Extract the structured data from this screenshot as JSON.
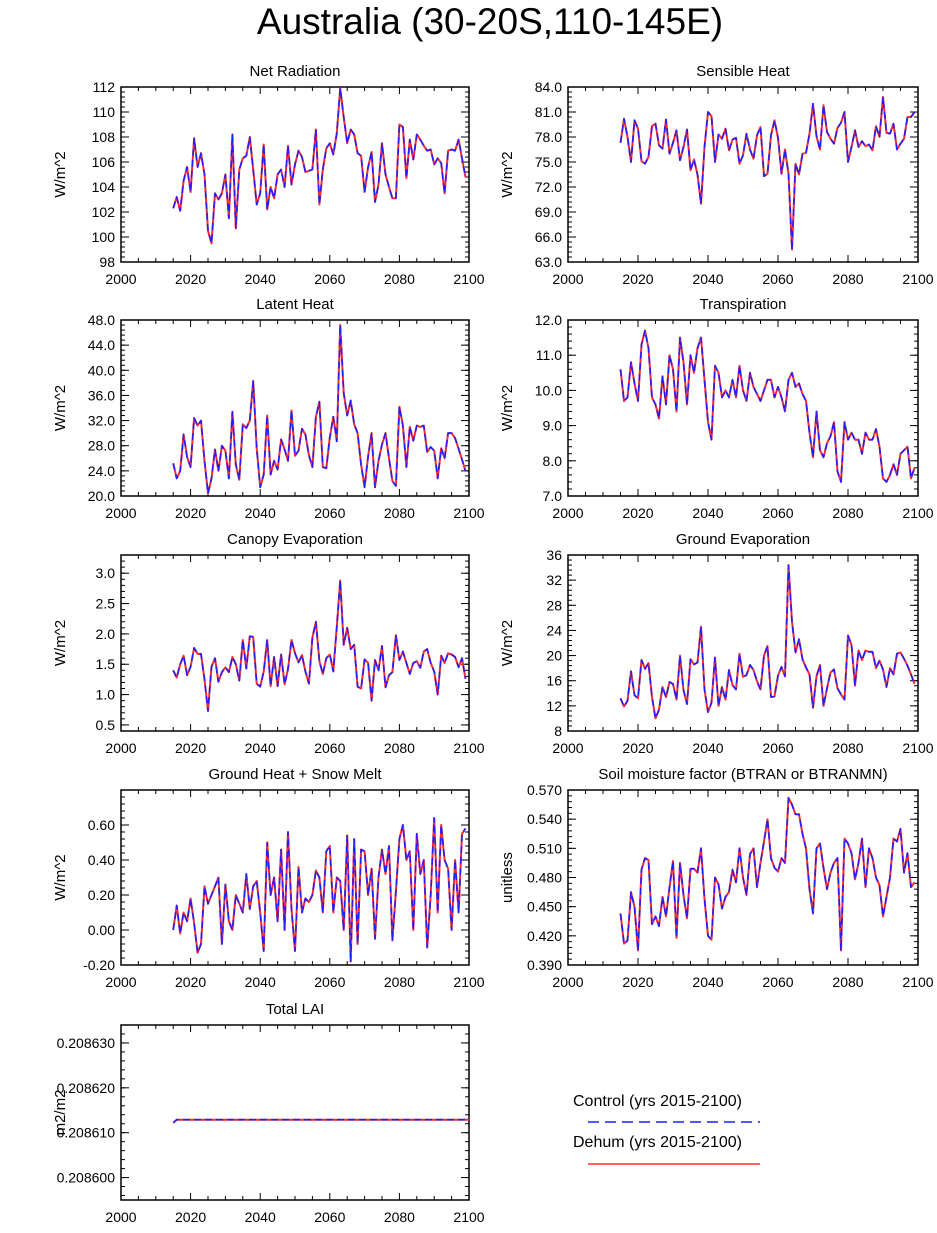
{
  "figure_title": "Australia (30-20S,110-145E)",
  "legend": [
    {
      "label": "Control (yrs 2015-2100)",
      "color": "#1f1fff",
      "style": "dashed"
    },
    {
      "label": "Dehum (yrs 2015-2100)",
      "color": "#ff2a2a",
      "style": "solid"
    }
  ],
  "chart_data": [
    {
      "type": "line",
      "title": "Net Radiation",
      "ylabel": "W/m^2",
      "xlim": [
        2000,
        2100
      ],
      "ylim": [
        98,
        112
      ],
      "yticks": [
        "98",
        "100",
        "102",
        "104",
        "106",
        "108",
        "110",
        "112"
      ],
      "xticks": [
        "2000",
        "2020",
        "2040",
        "2060",
        "2080",
        "2100"
      ],
      "x_start": 2015,
      "values": [
        102.3,
        103.2,
        102.1,
        104.5,
        105.6,
        103.6,
        107.9,
        105.6,
        106.7,
        105.0,
        100.5,
        99.5,
        103.5,
        103.0,
        103.5,
        105.0,
        101.5,
        108.2,
        100.7,
        105.4,
        106.3,
        106.5,
        108.0,
        105.4,
        102.6,
        103.5,
        107.4,
        102.2,
        104.0,
        103.1,
        105.0,
        105.4,
        104.0,
        107.3,
        104.2,
        105.8,
        106.9,
        106.4,
        105.2,
        105.3,
        105.4,
        108.6,
        102.6,
        105.4,
        107.1,
        107.5,
        106.6,
        108.3,
        111.9,
        109.6,
        107.5,
        108.6,
        108.2,
        106.7,
        106.5,
        103.6,
        105.6,
        106.8,
        102.8,
        104.2,
        107.5,
        105.0,
        104.0,
        103.1,
        103.1,
        109.0,
        108.8,
        104.7,
        107.8,
        106.2,
        108.2,
        107.8,
        107.3,
        106.9,
        107.0,
        105.8,
        106.3,
        105.9,
        103.5,
        106.9,
        107.0,
        106.9,
        107.8,
        106.3,
        104.8
      ]
    },
    {
      "type": "line",
      "title": "Sensible Heat",
      "ylabel": "W/m^2",
      "xlim": [
        2000,
        2100
      ],
      "ylim": [
        63,
        84
      ],
      "yticks": [
        "63.0",
        "66.0",
        "69.0",
        "72.0",
        "75.0",
        "78.0",
        "81.0",
        "84.0"
      ],
      "xticks": [
        "2000",
        "2020",
        "2040",
        "2060",
        "2080",
        "2100"
      ],
      "x_start": 2015,
      "values": [
        77.3,
        80.2,
        78.0,
        75.0,
        80.0,
        79.0,
        75.1,
        74.8,
        75.6,
        79.3,
        79.6,
        77.0,
        76.6,
        80.1,
        76.0,
        77.3,
        78.8,
        75.2,
        76.8,
        78.9,
        74.0,
        75.3,
        73.5,
        70.0,
        76.8,
        81.0,
        80.5,
        75.0,
        78.3,
        77.8,
        79.0,
        76.4,
        77.7,
        77.9,
        74.8,
        75.8,
        78.4,
        76.5,
        75.4,
        78.2,
        79.2,
        73.3,
        73.6,
        78.2,
        80.0,
        77.9,
        73.6,
        76.5,
        73.6,
        64.5,
        74.8,
        73.5,
        76.0,
        76.1,
        78.4,
        82.0,
        78.1,
        76.5,
        81.8,
        78.6,
        77.8,
        77.2,
        79.1,
        79.7,
        81.0,
        75.0,
        76.8,
        78.8,
        76.8,
        77.5,
        76.9,
        77.1,
        76.4,
        79.3,
        78.0,
        82.8,
        78.5,
        78.4,
        79.6,
        76.5,
        77.2,
        77.8,
        80.4,
        80.4,
        81.0
      ]
    },
    {
      "type": "line",
      "title": "Latent Heat",
      "ylabel": "W/m^2",
      "xlim": [
        2000,
        2100
      ],
      "ylim": [
        20,
        48
      ],
      "yticks": [
        "20.0",
        "24.0",
        "28.0",
        "32.0",
        "36.0",
        "40.0",
        "44.0",
        "48.0"
      ],
      "xticks": [
        "2000",
        "2020",
        "2040",
        "2060",
        "2080",
        "2100"
      ],
      "x_start": 2015,
      "values": [
        25.2,
        22.8,
        24.0,
        29.8,
        26.2,
        24.6,
        32.4,
        31.2,
        32.0,
        25.6,
        20.4,
        22.8,
        27.4,
        24.0,
        28.0,
        27.2,
        22.8,
        33.4,
        25.0,
        22.6,
        31.4,
        30.8,
        32.0,
        38.3,
        27.6,
        21.4,
        23.4,
        32.8,
        23.4,
        25.6,
        24.2,
        29.0,
        27.4,
        25.6,
        33.6,
        26.4,
        27.2,
        30.7,
        29.8,
        26.5,
        24.6,
        32.6,
        35.0,
        24.6,
        24.4,
        29.3,
        32.6,
        28.7,
        47.2,
        36.4,
        32.8,
        35.2,
        31.4,
        30.0,
        25.0,
        21.4,
        26.3,
        30.0,
        21.4,
        25.6,
        28.2,
        30.0,
        26.0,
        22.4,
        21.6,
        34.2,
        31.2,
        24.6,
        31.0,
        28.8,
        31.2,
        31.0,
        31.2,
        27.0,
        27.8,
        27.2,
        22.8,
        27.6,
        26.0,
        30.0,
        30.0,
        29.2,
        27.5,
        25.8,
        24.0
      ]
    },
    {
      "type": "line",
      "title": "Transpiration",
      "ylabel": "W/m^2",
      "xlim": [
        2000,
        2100
      ],
      "ylim": [
        7,
        12
      ],
      "yticks": [
        "7.0",
        "8.0",
        "9.0",
        "10.0",
        "11.0",
        "12.0"
      ],
      "xticks": [
        "2000",
        "2020",
        "2040",
        "2060",
        "2080",
        "2100"
      ],
      "x_start": 2015,
      "values": [
        10.6,
        9.7,
        9.8,
        10.8,
        10.2,
        9.7,
        11.3,
        11.7,
        11.2,
        9.8,
        9.6,
        9.2,
        10.4,
        9.6,
        11.0,
        10.6,
        9.4,
        11.5,
        10.8,
        9.6,
        11.0,
        10.5,
        11.2,
        11.5,
        10.3,
        9.1,
        8.6,
        10.7,
        10.5,
        9.8,
        10.0,
        9.8,
        10.3,
        9.8,
        10.7,
        10.0,
        9.7,
        10.5,
        10.1,
        9.9,
        9.7,
        10.0,
        10.3,
        10.3,
        9.8,
        10.1,
        9.8,
        9.4,
        10.3,
        10.5,
        10.1,
        10.2,
        9.9,
        9.7,
        8.8,
        8.1,
        9.4,
        8.3,
        8.1,
        8.5,
        8.7,
        9.1,
        7.7,
        7.4,
        9.1,
        8.6,
        8.8,
        8.6,
        8.6,
        8.2,
        8.8,
        8.6,
        8.6,
        8.9,
        8.4,
        7.5,
        7.4,
        7.6,
        7.9,
        7.6,
        8.2,
        8.3,
        8.4,
        7.5,
        7.8
      ]
    },
    {
      "type": "line",
      "title": "Canopy Evaporation",
      "ylabel": "W/m^2",
      "xlim": [
        2000,
        2100
      ],
      "ylim": [
        0.4,
        3.3
      ],
      "yticks": [
        "0.5",
        "1.0",
        "1.5",
        "2.0",
        "2.5",
        "3.0"
      ],
      "xticks": [
        "2000",
        "2020",
        "2040",
        "2060",
        "2080",
        "2100"
      ],
      "x_start": 2015,
      "values": [
        1.4,
        1.28,
        1.5,
        1.64,
        1.32,
        1.46,
        1.77,
        1.67,
        1.67,
        1.25,
        0.73,
        1.46,
        1.6,
        1.21,
        1.37,
        1.45,
        1.37,
        1.62,
        1.5,
        1.23,
        1.9,
        1.43,
        1.96,
        1.95,
        1.18,
        1.13,
        1.38,
        1.9,
        1.14,
        1.62,
        1.14,
        1.66,
        1.17,
        1.42,
        1.9,
        1.68,
        1.53,
        1.65,
        1.38,
        1.18,
        1.94,
        2.2,
        1.55,
        1.34,
        1.6,
        1.66,
        1.38,
        2.12,
        2.88,
        1.82,
        2.1,
        1.75,
        1.82,
        1.13,
        1.1,
        1.58,
        1.52,
        0.9,
        1.57,
        1.4,
        1.8,
        1.12,
        1.32,
        1.37,
        1.98,
        1.57,
        1.71,
        1.52,
        1.34,
        1.52,
        1.55,
        1.44,
        1.71,
        1.75,
        1.52,
        1.38,
        1.0,
        1.64,
        1.52,
        1.68,
        1.66,
        1.62,
        1.45,
        1.6,
        1.26
      ]
    },
    {
      "type": "line",
      "title": "Ground Evaporation",
      "ylabel": "W/m^2",
      "xlim": [
        2000,
        2100
      ],
      "ylim": [
        8,
        36
      ],
      "yticks": [
        "8",
        "12",
        "16",
        "20",
        "24",
        "28",
        "32",
        "36"
      ],
      "xticks": [
        "2000",
        "2020",
        "2040",
        "2060",
        "2080",
        "2100"
      ],
      "x_start": 2015,
      "values": [
        13.2,
        11.9,
        12.8,
        17.5,
        13.7,
        13.2,
        19.3,
        17.9,
        18.8,
        13.4,
        10.0,
        11.4,
        15.0,
        13.4,
        15.8,
        15.5,
        13.0,
        20.0,
        14.5,
        12.3,
        19.4,
        18.6,
        18.9,
        24.6,
        14.6,
        11.0,
        12.5,
        19.7,
        12.0,
        15.0,
        13.0,
        17.7,
        15.3,
        14.6,
        20.3,
        16.6,
        16.9,
        18.5,
        17.7,
        15.9,
        14.6,
        20.0,
        21.5,
        13.4,
        13.5,
        16.8,
        18.2,
        16.7,
        34.4,
        25.4,
        20.5,
        22.6,
        19.4,
        18.1,
        17.0,
        11.7,
        16.7,
        18.5,
        12.0,
        14.8,
        17.3,
        17.8,
        14.8,
        13.8,
        13.0,
        23.2,
        21.7,
        15.2,
        20.8,
        19.3,
        20.8,
        20.6,
        20.6,
        18.0,
        19.2,
        17.8,
        15.0,
        18.0,
        17.0,
        20.3,
        20.5,
        19.5,
        18.4,
        17.0,
        15.5
      ]
    },
    {
      "type": "line",
      "title": "Ground Heat + Snow Melt",
      "ylabel": "W/m^2",
      "xlim": [
        2000,
        2100
      ],
      "ylim": [
        -0.2,
        0.8
      ],
      "yticks": [
        "-0.20",
        "0.00",
        "0.20",
        "0.40",
        "0.60"
      ],
      "xticks": [
        "2000",
        "2020",
        "2040",
        "2060",
        "2080",
        "2100"
      ],
      "x_start": 2015,
      "values": [
        0.0,
        0.14,
        -0.02,
        0.1,
        0.05,
        0.18,
        0.04,
        -0.13,
        -0.08,
        0.25,
        0.15,
        0.2,
        0.25,
        0.3,
        -0.08,
        0.26,
        0.05,
        0.0,
        0.2,
        0.15,
        0.1,
        0.32,
        0.12,
        0.25,
        0.28,
        0.1,
        -0.12,
        0.5,
        0.2,
        0.3,
        0.05,
        0.46,
        0.0,
        0.56,
        0.12,
        -0.12,
        0.36,
        0.1,
        0.18,
        0.16,
        0.2,
        0.34,
        0.3,
        0.1,
        0.45,
        0.48,
        0.1,
        0.3,
        0.28,
        0.0,
        0.54,
        -0.18,
        0.52,
        -0.08,
        0.46,
        0.45,
        0.2,
        0.35,
        -0.05,
        0.3,
        0.46,
        0.32,
        0.48,
        -0.06,
        0.22,
        0.52,
        0.6,
        0.4,
        0.45,
        0.0,
        0.55,
        0.32,
        0.4,
        -0.1,
        0.2,
        0.64,
        0.1,
        0.6,
        0.4,
        0.35,
        0.0,
        0.4,
        0.1,
        0.55,
        0.58
      ]
    },
    {
      "type": "line",
      "title": "Soil moisture factor (BTRAN or BTRANMN)",
      "ylabel": "unitless",
      "xlim": [
        2000,
        2100
      ],
      "ylim": [
        0.39,
        0.57
      ],
      "yticks": [
        "0.390",
        "0.420",
        "0.450",
        "0.480",
        "0.510",
        "0.540",
        "0.570"
      ],
      "xticks": [
        "2000",
        "2020",
        "2040",
        "2060",
        "2080",
        "2100"
      ],
      "x_start": 2015,
      "values": [
        0.443,
        0.412,
        0.415,
        0.465,
        0.45,
        0.405,
        0.488,
        0.5,
        0.498,
        0.432,
        0.44,
        0.43,
        0.46,
        0.44,
        0.47,
        0.497,
        0.418,
        0.495,
        0.462,
        0.438,
        0.489,
        0.489,
        0.485,
        0.51,
        0.458,
        0.42,
        0.416,
        0.48,
        0.473,
        0.448,
        0.46,
        0.465,
        0.488,
        0.475,
        0.51,
        0.48,
        0.462,
        0.504,
        0.51,
        0.47,
        0.495,
        0.517,
        0.54,
        0.5,
        0.49,
        0.486,
        0.5,
        0.495,
        0.562,
        0.555,
        0.545,
        0.545,
        0.525,
        0.51,
        0.468,
        0.443,
        0.51,
        0.515,
        0.49,
        0.468,
        0.485,
        0.495,
        0.5,
        0.405,
        0.52,
        0.515,
        0.505,
        0.478,
        0.495,
        0.52,
        0.47,
        0.51,
        0.5,
        0.48,
        0.472,
        0.44,
        0.46,
        0.48,
        0.52,
        0.517,
        0.53,
        0.485,
        0.505,
        0.47,
        0.475
      ]
    },
    {
      "type": "line",
      "title": "Total LAI",
      "ylabel": "m2/m2",
      "xlim": [
        2000,
        2100
      ],
      "ylim": [
        0.208595,
        0.208634
      ],
      "yticks": [
        "0.208600",
        "0.208610",
        "0.208620",
        "0.208630"
      ],
      "xticks": [
        "2000",
        "2020",
        "2040",
        "2060",
        "2080",
        "2100"
      ],
      "x_start": 2015,
      "values": [
        0.2086122,
        0.2086129,
        0.2086129,
        0.2086129,
        0.2086129,
        0.2086129,
        0.2086129,
        0.2086129,
        0.2086129,
        0.2086129,
        0.2086129,
        0.2086129,
        0.2086129,
        0.2086129,
        0.2086129,
        0.2086129,
        0.2086129,
        0.2086129,
        0.2086129,
        0.2086129,
        0.2086129,
        0.2086129,
        0.2086129,
        0.2086129,
        0.2086129,
        0.2086129,
        0.2086129,
        0.2086129,
        0.2086129,
        0.2086129,
        0.2086129,
        0.2086129,
        0.2086129,
        0.2086129,
        0.2086129,
        0.2086129,
        0.2086129,
        0.2086129,
        0.2086129,
        0.2086129,
        0.2086129,
        0.2086129,
        0.2086129,
        0.2086129,
        0.2086129,
        0.2086129,
        0.2086129,
        0.2086129,
        0.2086129,
        0.2086129,
        0.2086129,
        0.2086129,
        0.2086129,
        0.2086129,
        0.2086129,
        0.2086129,
        0.2086129,
        0.2086129,
        0.2086129,
        0.2086129,
        0.2086129,
        0.2086129,
        0.2086129,
        0.2086129,
        0.2086129,
        0.2086129,
        0.2086129,
        0.2086129,
        0.2086129,
        0.2086129,
        0.2086129,
        0.2086129,
        0.2086129,
        0.2086129,
        0.2086129,
        0.2086129,
        0.2086129,
        0.2086129,
        0.2086129,
        0.2086129,
        0.2086129,
        0.2086129,
        0.2086129,
        0.2086129,
        0.2086129,
        0.2086129
      ]
    }
  ]
}
